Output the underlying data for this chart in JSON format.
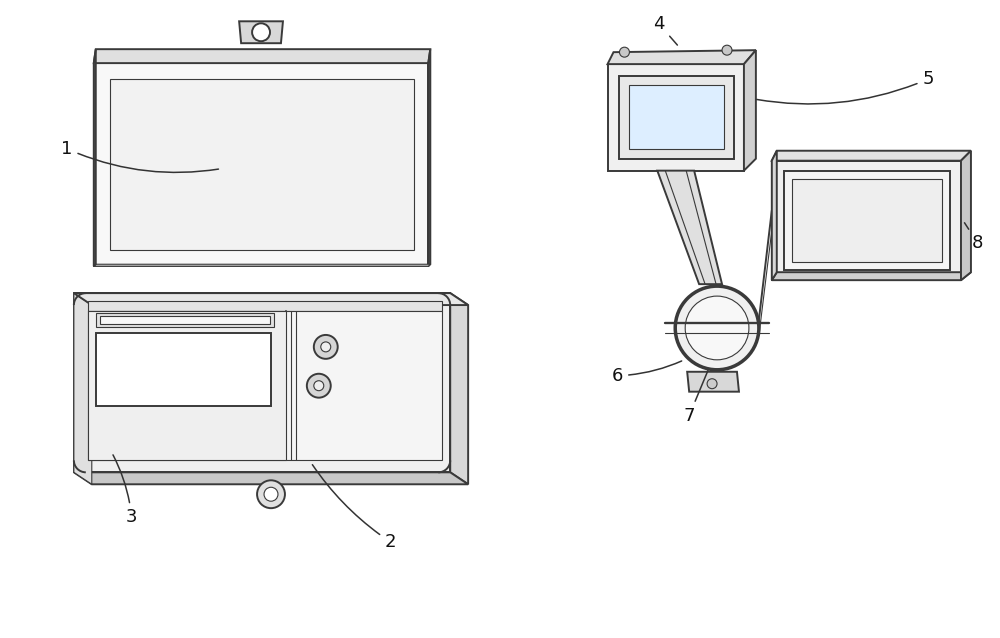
{
  "background_color": "#ffffff",
  "line_color": "#3a3a3a",
  "lw": 1.4,
  "tlw": 0.8,
  "figsize": [
    10.0,
    6.38
  ],
  "dpi": 100,
  "font_size": 13
}
